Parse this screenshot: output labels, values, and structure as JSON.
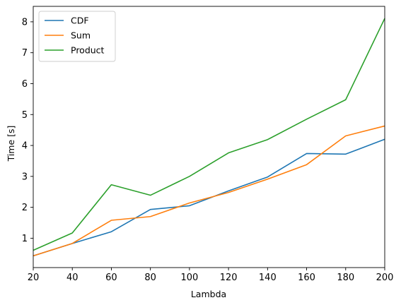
{
  "chart_data": {
    "type": "line",
    "title": "",
    "xlabel": "Lambda",
    "ylabel": "Time [s]",
    "xlim": [
      20,
      200
    ],
    "ylim": [
      0.05,
      8.5
    ],
    "x": [
      20,
      40,
      60,
      80,
      100,
      120,
      140,
      160,
      180,
      200
    ],
    "xticks": [
      20,
      40,
      60,
      80,
      100,
      120,
      140,
      160,
      180,
      200
    ],
    "yticks": [
      1,
      2,
      3,
      4,
      5,
      6,
      7,
      8
    ],
    "grid": false,
    "legend_position": "top-left",
    "series": [
      {
        "name": "CDF",
        "color": "#1f77b4",
        "values": [
          0.43,
          0.83,
          1.21,
          1.93,
          2.05,
          2.53,
          2.98,
          3.74,
          3.72,
          4.2
        ]
      },
      {
        "name": "Sum",
        "color": "#ff7f0e",
        "values": [
          0.43,
          0.83,
          1.58,
          1.7,
          2.14,
          2.48,
          2.91,
          3.38,
          4.31,
          4.63
        ]
      },
      {
        "name": "Product",
        "color": "#2ca02c",
        "values": [
          0.61,
          1.17,
          2.73,
          2.39,
          3.0,
          3.76,
          4.19,
          4.85,
          5.48,
          8.11
        ]
      }
    ]
  }
}
